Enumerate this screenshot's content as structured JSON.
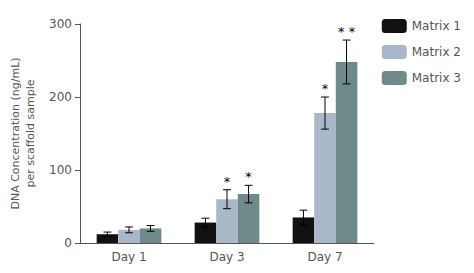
{
  "chart_data": {
    "type": "bar",
    "categories": [
      "Day 1",
      "Day 3",
      "Day 7"
    ],
    "series": [
      {
        "name": "Matrix 1",
        "color": "#111111",
        "values": [
          12,
          28,
          35
        ],
        "errors": [
          3,
          6,
          10
        ]
      },
      {
        "name": "Matrix 2",
        "color": "#a8b8c8",
        "values": [
          18,
          60,
          178
        ],
        "errors": [
          4,
          13,
          22
        ]
      },
      {
        "name": "Matrix 3",
        "color": "#6e8a8a",
        "values": [
          20,
          67,
          248
        ],
        "errors": [
          4,
          12,
          30
        ]
      }
    ],
    "ylabel": "DNA Concentration (ng/mL)\nper scaffold sample",
    "ylim": [
      0,
      300
    ],
    "yticks": [
      0,
      100,
      200,
      300
    ],
    "grid": false,
    "legend": "right",
    "annotations": [
      {
        "text": "*",
        "category": "Day 3",
        "series": "Matrix 2"
      },
      {
        "text": "*",
        "category": "Day 3",
        "series": "Matrix 3"
      },
      {
        "text": "*",
        "category": "Day 7",
        "series": "Matrix 2"
      },
      {
        "text": "* *",
        "category": "Day 7",
        "series": "Matrix 3"
      }
    ]
  }
}
